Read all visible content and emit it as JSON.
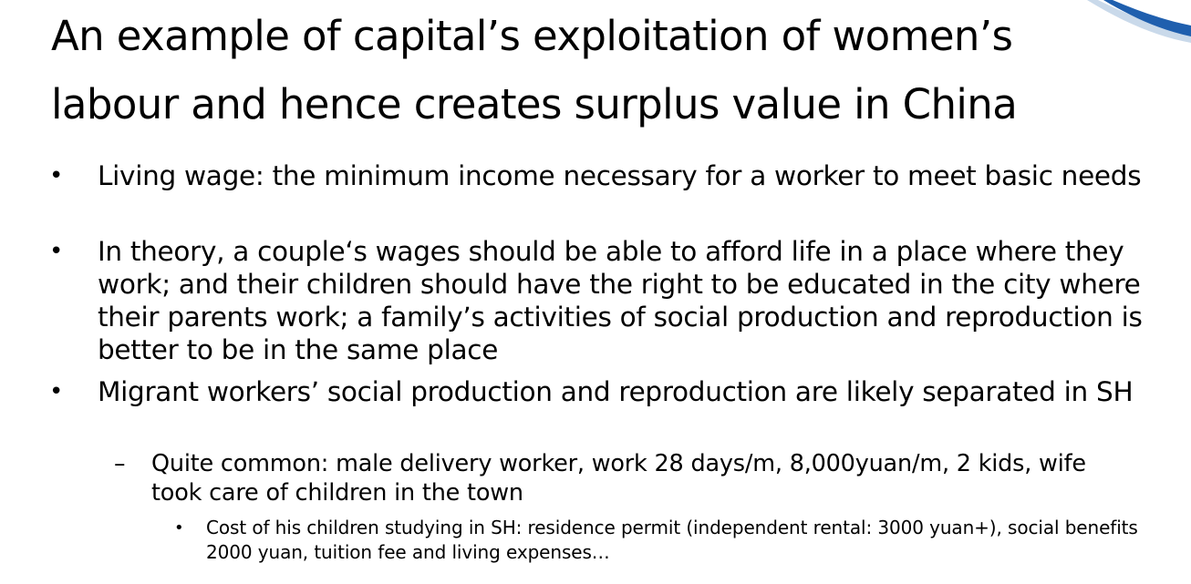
{
  "slide": {
    "title": "An example of capital’s exploitation of women’s labour and hence creates surplus value in China",
    "bullet_glyph": "•",
    "dash_glyph": "–",
    "small_bullet_glyph": "•",
    "bullets": [
      {
        "text": "Living wage: the minimum income necessary for a worker to meet basic needs"
      },
      {
        "text": "In theory, a couple‘s wages should be able to afford life in a place where they work; and their children should have the right to be educated in the city where their parents work; a family’s activities of social production and reproduction is better to be in the same place"
      },
      {
        "text": "Migrant workers’ social production and reproduction are likely separated in SH"
      }
    ],
    "sub_bullet": {
      "text": "Quite common: male delivery worker, work 28 days/m, 8,000yuan/m, 2 kids, wife took care of children in the town"
    },
    "sub_sub_bullet": {
      "text": "Cost of his children studying in SH: residence permit (independent rental: 3000 yuan+), social benefits 2000 yuan, tuition fee and living expenses…"
    }
  },
  "colors": {
    "background": "#ffffff",
    "text": "#000000",
    "accent_blue": "#1f5fae",
    "accent_light": "#c9d9ea"
  }
}
